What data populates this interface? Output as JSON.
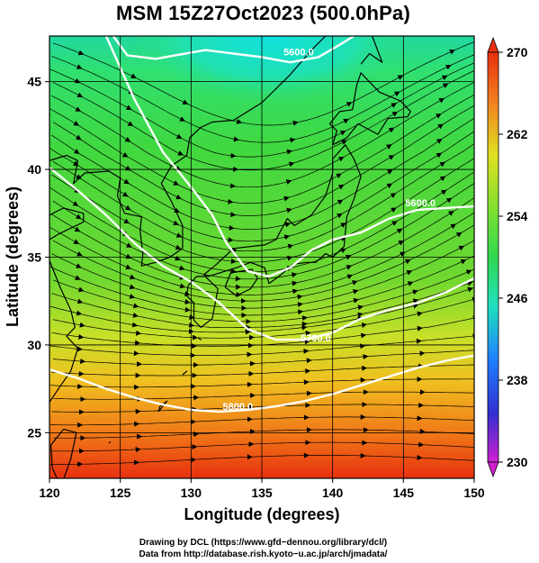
{
  "title": "MSM 15Z27Oct2023 (500.0hPa)",
  "x_axis": {
    "label": "Longitude (degrees)",
    "ticks": [
      120,
      125,
      130,
      135,
      140,
      145,
      150
    ],
    "range": [
      120,
      150
    ]
  },
  "y_axis": {
    "label": "Latitude  (degrees)",
    "ticks": [
      25,
      30,
      35,
      40,
      45
    ],
    "range": [
      22.4,
      47.6
    ]
  },
  "colorbar": {
    "ticks": [
      270,
      262,
      254,
      246,
      238,
      230
    ],
    "range": [
      230,
      270
    ],
    "colors": [
      "#ff40c0",
      "#8030ff",
      "#2060ff",
      "#20e0e0",
      "#30e080",
      "#40d040",
      "#c0e030",
      "#f0c020",
      "#f07020",
      "#e02010"
    ]
  },
  "contours": [
    {
      "label": "5600.0"
    },
    {
      "label": "5600.0"
    },
    {
      "label": "5700.0"
    },
    {
      "label": "5800.0"
    }
  ],
  "footer": {
    "line1": "Drawing by DCL (https://www.gfd−dennou.org/library/dcl/)",
    "line2": "Data from http://database.rish.kyoto−u.ac.jp/arch/jmadata/"
  },
  "chart_data": {
    "type": "heatmap",
    "title": "MSM 15Z27Oct2023 (500.0hPa)",
    "xlabel": "Longitude (degrees)",
    "ylabel": "Latitude  (degrees)",
    "xlim": [
      120,
      150
    ],
    "ylim": [
      22.4,
      47.6
    ],
    "colorbar_range": [
      230,
      270
    ],
    "colorbar_ticks": [
      230,
      238,
      246,
      254,
      262,
      270
    ],
    "contour_levels": [
      5600,
      5700,
      5800
    ],
    "grid": true
  }
}
